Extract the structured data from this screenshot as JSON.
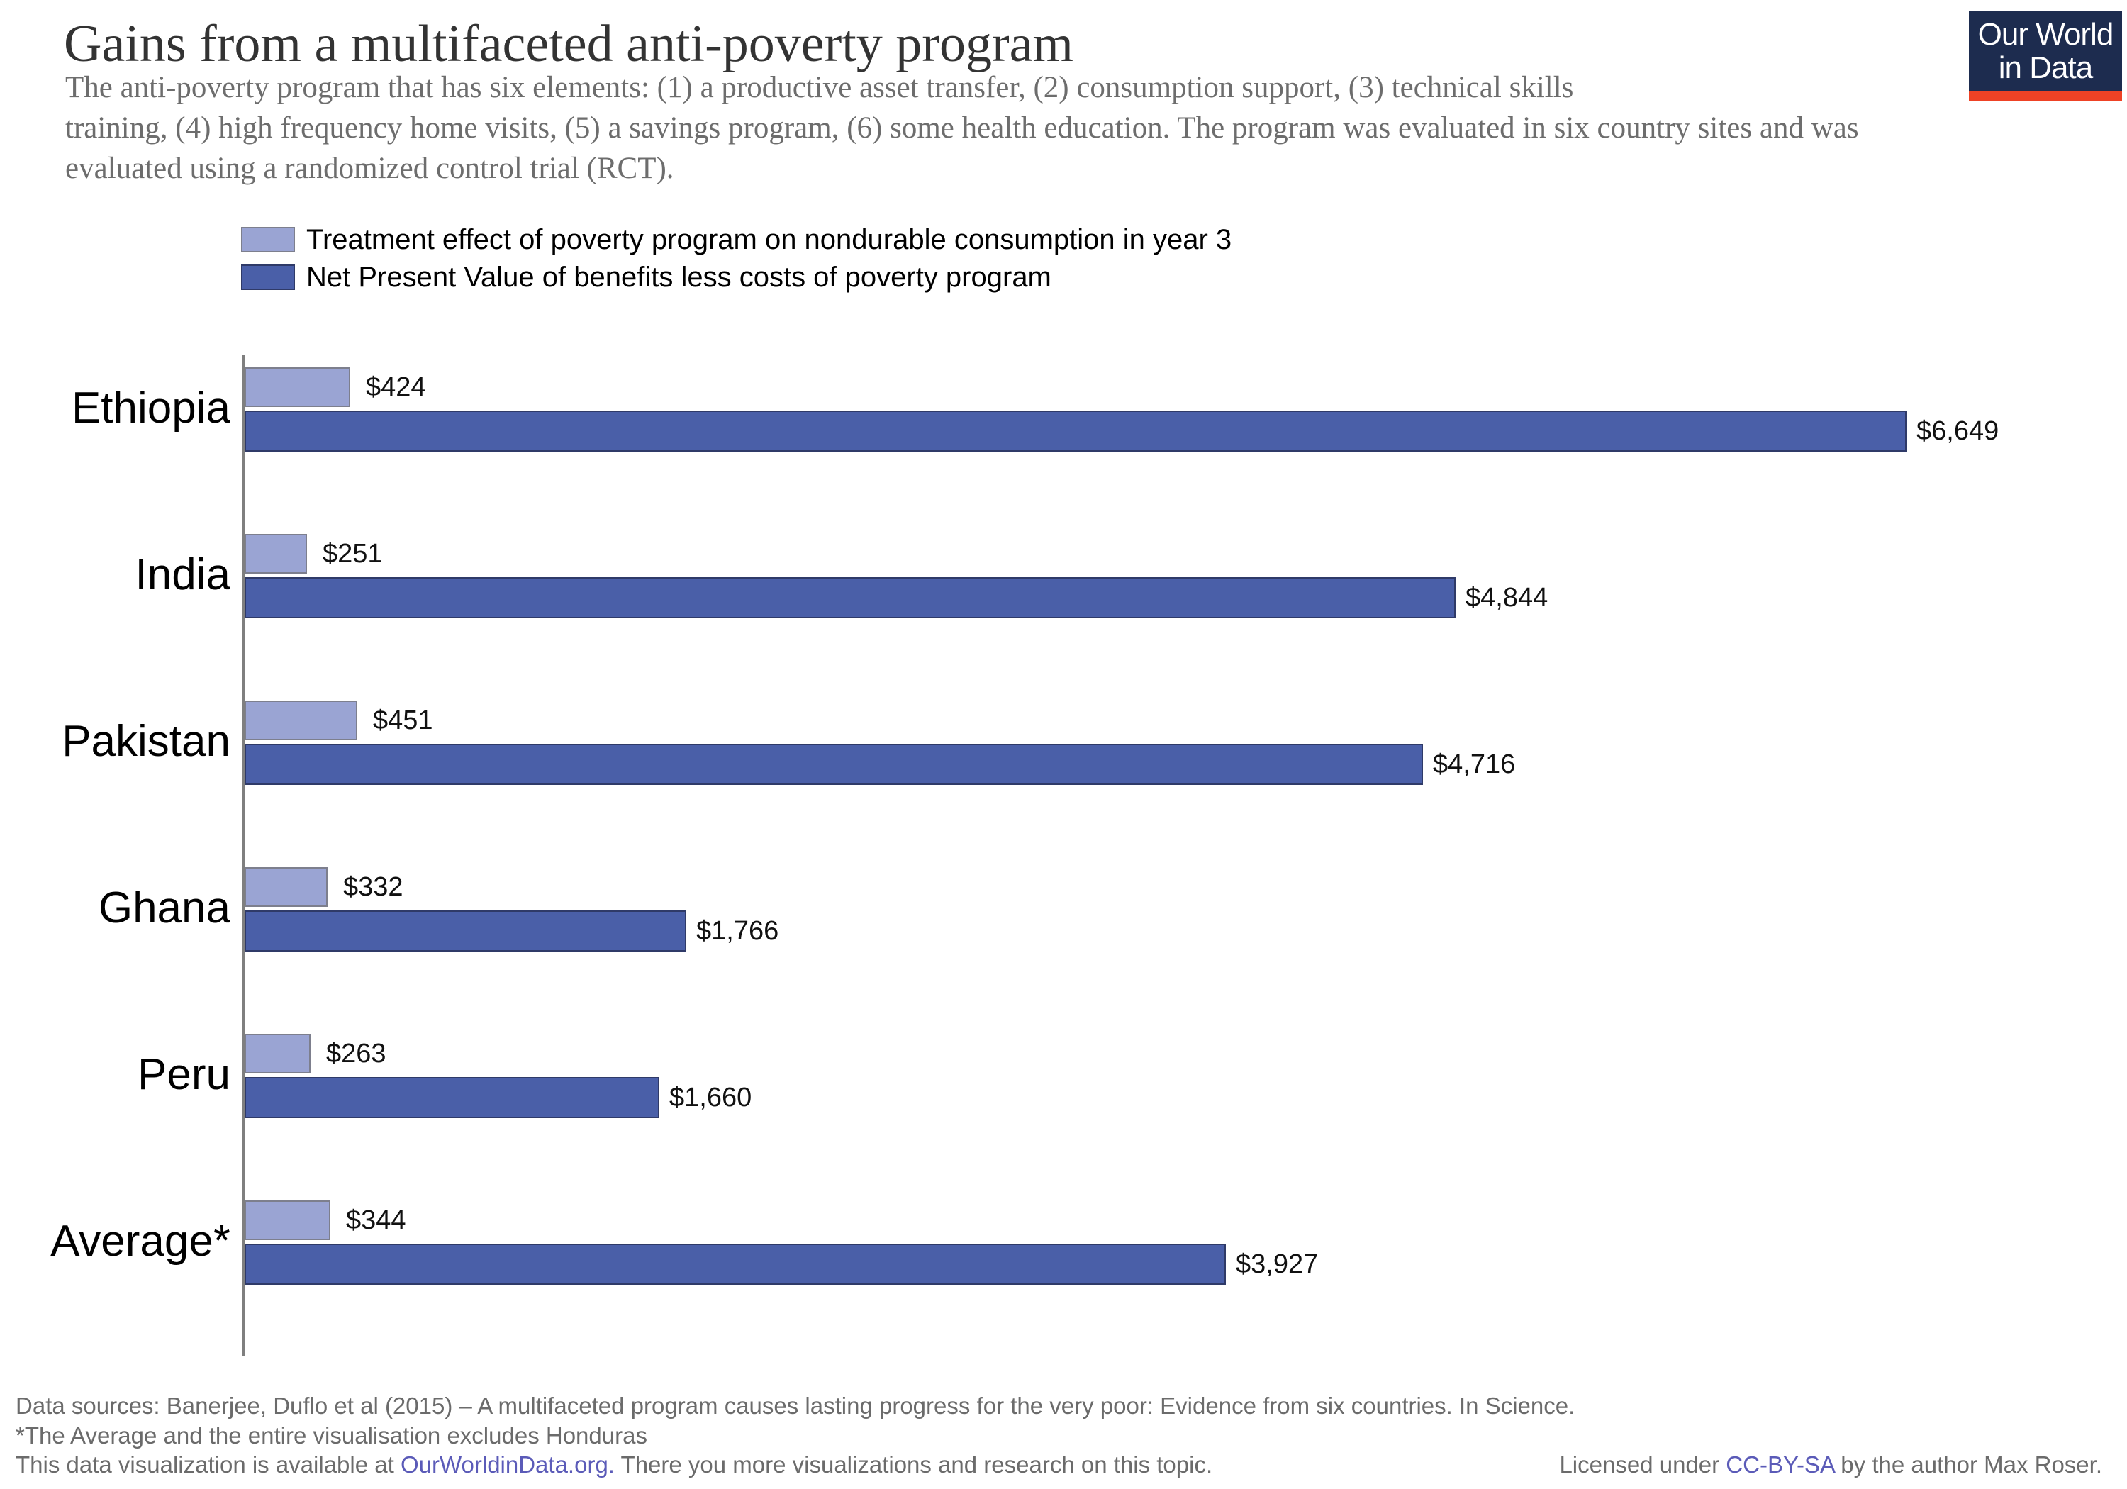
{
  "header": {
    "title": "Gains from a multifaceted anti-poverty program",
    "subtitle_lines": [
      "The anti-poverty program that has six elements: (1) a productive asset transfer, (2) consumption support, (3) technical skills",
      "training, (4) high frequency home visits, (5) a savings program, (6) some health education. The program was evaluated in six country sites and was",
      "evaluated using a randomized control trial (RCT)."
    ]
  },
  "logo": {
    "line1": "Our World",
    "line2": "in Data",
    "bg_color": "#1d2c4f",
    "accent_color": "#ee4225"
  },
  "chart_data": {
    "type": "bar",
    "orientation": "horizontal",
    "categories": [
      "Ethiopia",
      "India",
      "Pakistan",
      "Ghana",
      "Peru",
      "Average*"
    ],
    "series": [
      {
        "name": "Treatment effect of poverty program on nondurable consumption in year 3",
        "color": "#9AA4D3",
        "border_color": "#7d7f8d",
        "values": [
          424,
          251,
          451,
          332,
          263,
          344
        ],
        "labels": [
          "$424",
          "$251",
          "$451",
          "$332",
          "$263",
          "$344"
        ]
      },
      {
        "name": "Net Present Value of benefits less costs of poverty program",
        "color": "#4A5FA8",
        "border_color": "#2f3a68",
        "values": [
          6649,
          4844,
          4716,
          1766,
          1660,
          3927
        ],
        "labels": [
          "$6,649",
          "$4,844",
          "$4,716",
          "$1,766",
          "$1,660",
          "$3,927"
        ]
      }
    ],
    "xlim": [
      0,
      7500
    ],
    "axis_color": "#7f7f7f",
    "grid": false,
    "legend_position": "top-left"
  },
  "footer": {
    "line1": "Data sources: Banerjee, Duflo et al (2015) – A multifaceted program causes lasting progress for the very poor: Evidence from six countries. In Science.",
    "line2": "*The Average and the entire visualisation excludes Honduras",
    "line3_pre": "This data visualization is available at ",
    "line3_link": "OurWorldinData.org.",
    "line3_post": " There you more visualizations and research on this topic.",
    "license_pre": "Licensed under ",
    "license_link": "CC-BY-SA",
    "license_post": " by the author Max Roser.",
    "link_color": "#5B5BB8"
  }
}
